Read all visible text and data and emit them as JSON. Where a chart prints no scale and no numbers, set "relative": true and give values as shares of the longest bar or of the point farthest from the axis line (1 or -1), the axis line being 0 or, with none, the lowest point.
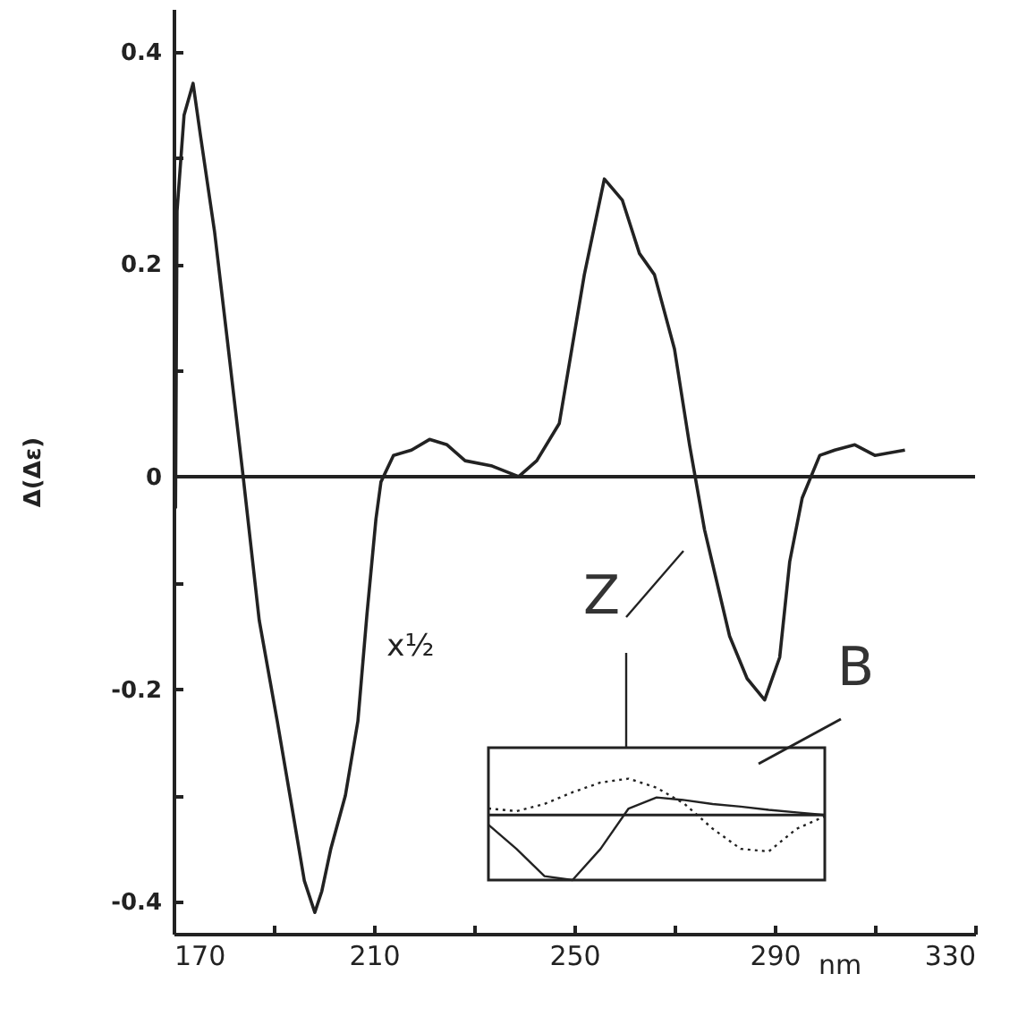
{
  "chart_data": [
    {
      "type": "line",
      "xlabel": "nm",
      "ylabel": "Δ(Δε)",
      "xlim": [
        170,
        330
      ],
      "ylim": [
        -0.43,
        0.44
      ],
      "xticks": [
        170,
        {
          "value": 190,
          "label": null
        },
        210,
        {
          "value": 230,
          "label": null
        },
        250,
        {
          "value": 270,
          "label": null
        },
        290,
        {
          "value": 310,
          "label": null
        },
        330
      ],
      "yticks": [
        -0.4,
        {
          "value": -0.3,
          "label": null
        },
        -0.2,
        {
          "value": -0.1,
          "label": null
        },
        0,
        {
          "value": 0.1,
          "label": null
        },
        0.2,
        {
          "value": 0.3,
          "label": null
        },
        0.4
      ],
      "grid": false,
      "marker": "none",
      "line_style": "solid",
      "series": [
        {
          "color": "#222222",
          "x": [
            170.4,
            170.7,
            172.1,
            173.9,
            175.4,
            178.2,
            180.7,
            183.9,
            187.1,
            190.7,
            193.6,
            196.1,
            198.2,
            199.6,
            201.4,
            204.3,
            206.8,
            208.6,
            210.4,
            211.4,
            213.9,
            217.5,
            221.1,
            224.6,
            228.2,
            233.6,
            238.9,
            242.5,
            247,
            252,
            256,
            259.6,
            263,
            266,
            270,
            273,
            276,
            281,
            284.5,
            288,
            291,
            293,
            295.5,
            299,
            302,
            306,
            310,
            316
          ],
          "values": [
            -0.03,
            0.25,
            0.34,
            0.37,
            0.32,
            0.23,
            0.13,
            0,
            -0.135,
            -0.23,
            -0.31,
            -0.38,
            -0.41,
            -0.39,
            -0.35,
            -0.3,
            -0.23,
            -0.13,
            -0.04,
            -0.005,
            0.02,
            0.025,
            0.035,
            0.03,
            0.015,
            0.01,
            0,
            0.015,
            0.05,
            0.19,
            0.28,
            0.26,
            0.21,
            0.19,
            0.12,
            0.03,
            -0.05,
            -0.15,
            -0.19,
            -0.21,
            -0.17,
            -0.08,
            -0.02,
            0.02,
            0.025,
            0.03,
            0.02,
            0.025
          ]
        }
      ],
      "ref_lines": [
        {
          "axis": "y",
          "value": 0,
          "color": "#222222"
        }
      ],
      "annotations": [
        {
          "text": "x½",
          "x": 208,
          "y": -0.2
        },
        "Z",
        "B"
      ]
    },
    {
      "type": "line",
      "relative": true,
      "marker": "none",
      "grid": false,
      "categories": [
        null,
        null,
        null,
        null,
        null,
        null,
        null,
        null,
        null,
        null,
        null,
        null,
        null
      ],
      "series": [
        {
          "color": "#222222",
          "line_style": "dotted",
          "values": [
            0.1,
            0.06,
            0.17,
            0.35,
            0.5,
            0.56,
            0.42,
            0.17,
            -0.21,
            -0.52,
            -0.56,
            -0.21,
            -0.02
          ]
        },
        {
          "color": "#222222",
          "line_style": "solid",
          "values": [
            -0.15,
            -0.52,
            -0.94,
            -1,
            -0.52,
            0.1,
            0.27,
            0.23,
            0.17,
            0.13,
            0.08,
            0.04,
            0
          ]
        }
      ],
      "ref_lines": [
        {
          "axis": "y",
          "value": 0,
          "color": "#222222"
        }
      ]
    }
  ]
}
